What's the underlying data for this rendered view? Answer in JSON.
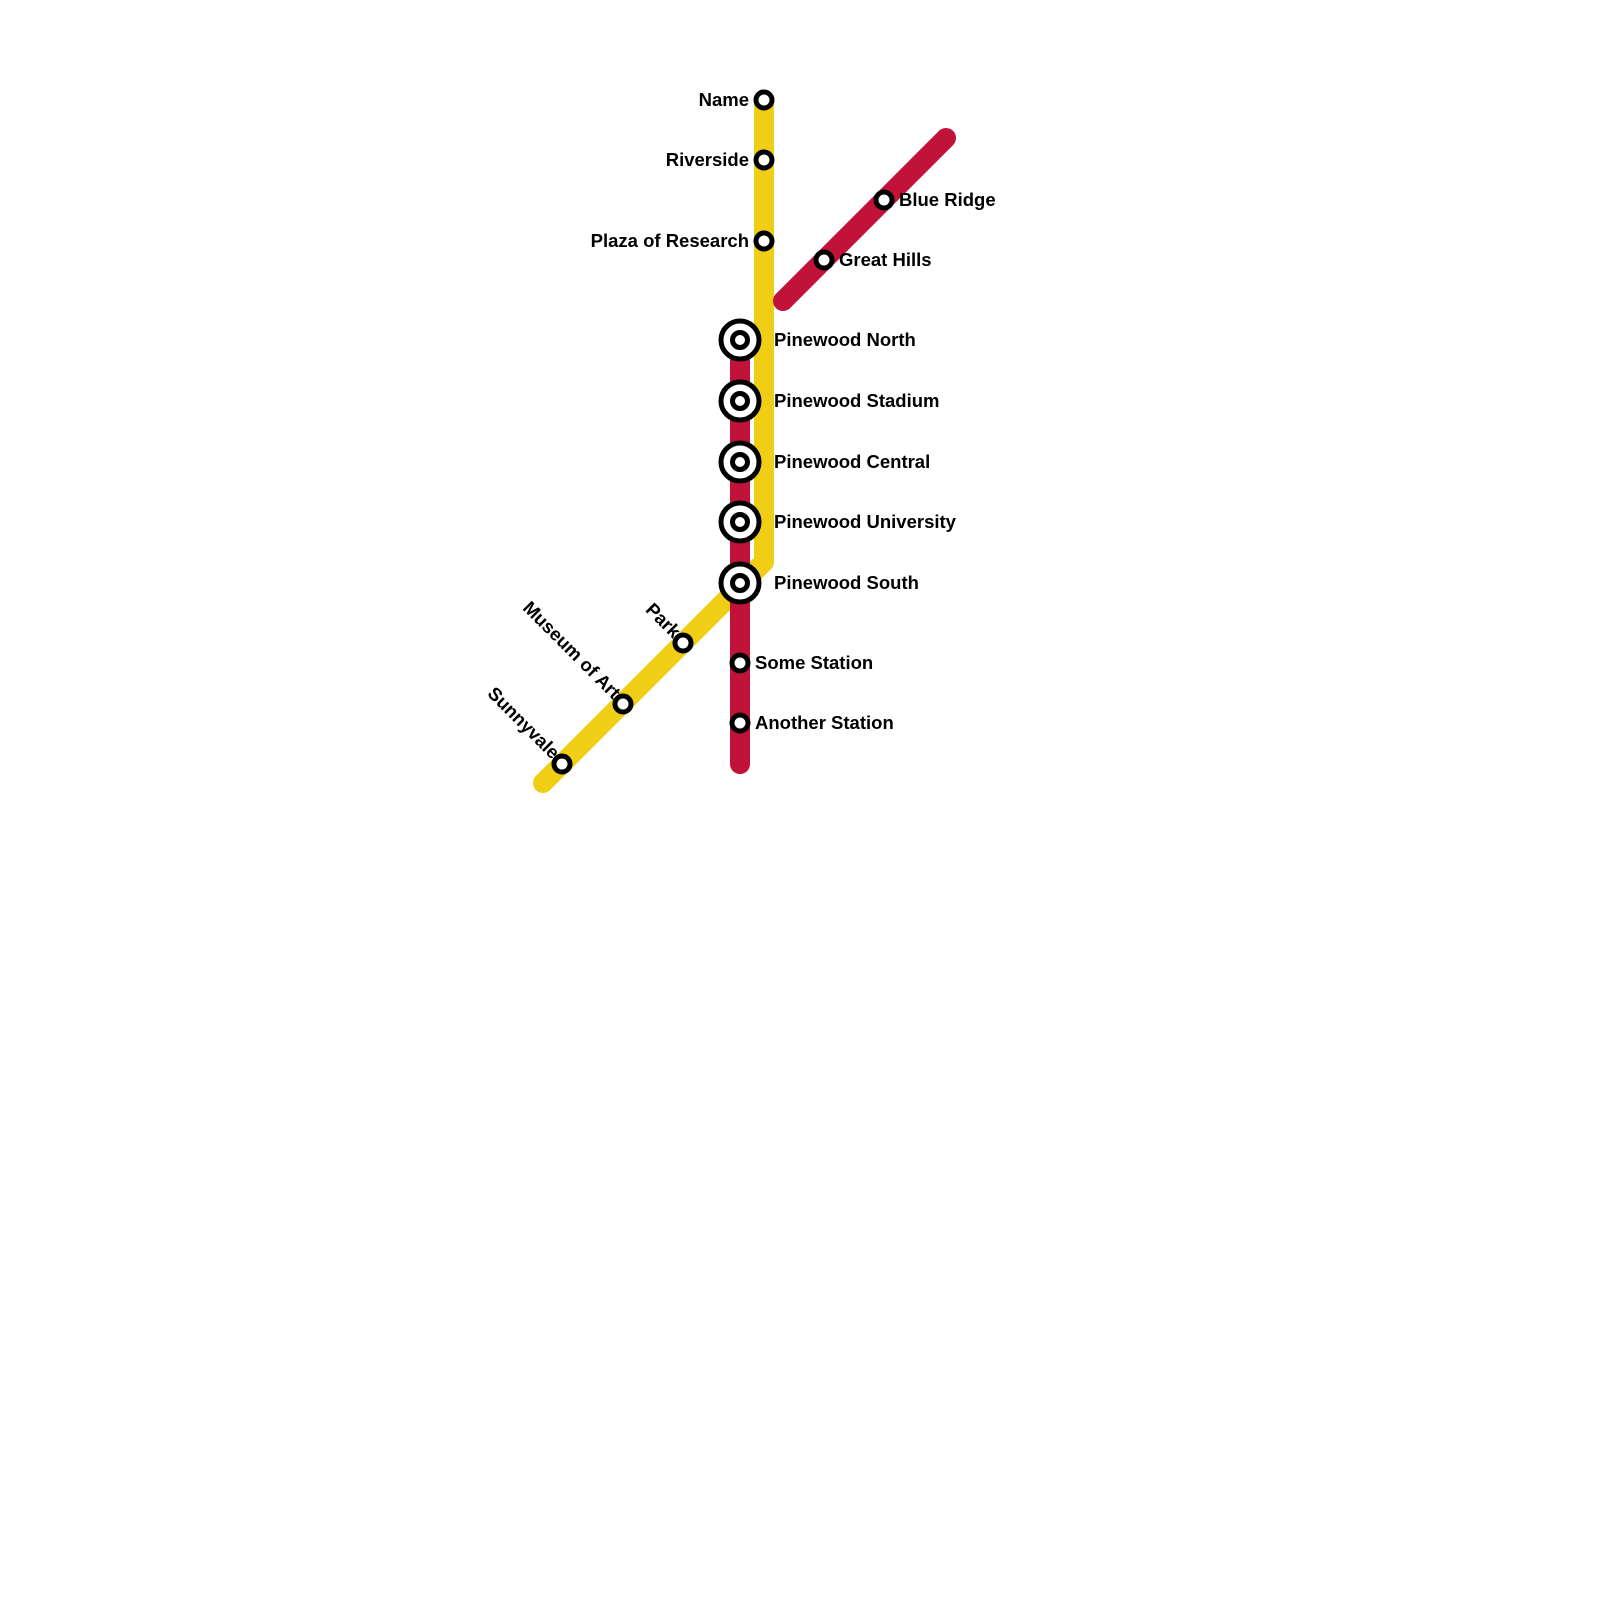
{
  "lines": [
    {
      "id": "yellow",
      "color": "#f0ce15"
    },
    {
      "id": "red",
      "color": "#c1133a"
    }
  ],
  "stations": [
    {
      "name": "Name",
      "interchange": false
    },
    {
      "name": "Riverside",
      "interchange": false
    },
    {
      "name": "Plaza of Research",
      "interchange": false
    },
    {
      "name": "Blue Ridge",
      "interchange": false
    },
    {
      "name": "Great Hills",
      "interchange": false
    },
    {
      "name": "Pinewood North",
      "interchange": true
    },
    {
      "name": "Pinewood Stadium",
      "interchange": true
    },
    {
      "name": "Pinewood Central",
      "interchange": true
    },
    {
      "name": "Pinewood University",
      "interchange": true
    },
    {
      "name": "Pinewood South",
      "interchange": true
    },
    {
      "name": "Park",
      "interchange": false
    },
    {
      "name": "Museum of Art",
      "interchange": false
    },
    {
      "name": "Sunnyvale",
      "interchange": false
    },
    {
      "name": "Some Station",
      "interchange": false
    },
    {
      "name": "Another Station",
      "interchange": false
    }
  ]
}
